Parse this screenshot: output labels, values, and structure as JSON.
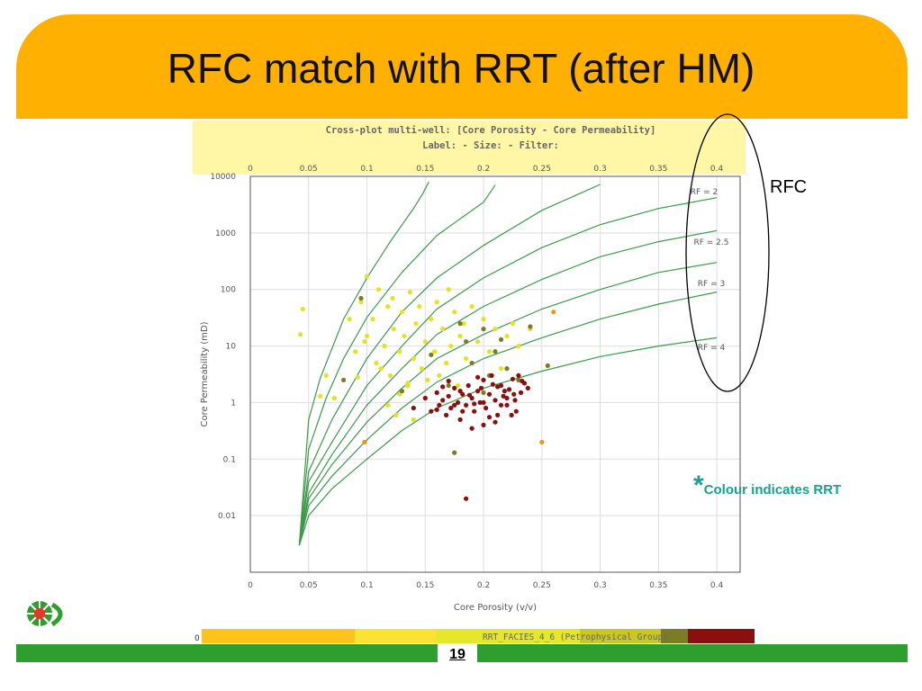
{
  "slide": {
    "title": "RFC match with RRT (after HM)",
    "annotation_label": "RFC",
    "note_star": "*",
    "note_text": "Colour indicates RRT",
    "page_number": "19"
  },
  "colors": {
    "title_band": "#FFB000",
    "footer_rule": "#2E9E2E",
    "note": "#1AA08F",
    "curve": "#3C9A4A",
    "rrt_light": "#E4E41E",
    "rrt_olive": "#7C7C24",
    "rrt_dark": "#8B0F0F",
    "rrt_orange": "#E89A12",
    "plot_header": "#FFF7A6"
  },
  "chart_data": {
    "type": "scatter",
    "title": "Cross-plot multi-well: [Core Porosity - Core Permeability]",
    "subtitle": "Label:   -  Size:   -  Filter:",
    "xlabel": "Core Porosity (v/v)",
    "ylabel": "Core Permeability (mD)",
    "xlim": [
      0,
      0.42
    ],
    "ylim": [
      0.001,
      10000
    ],
    "ylog": true,
    "grid": true,
    "x_ticks": [
      "0",
      "0.05",
      "0.1",
      "0.15",
      "0.2",
      "0.25",
      "0.3",
      "0.35",
      "0.4"
    ],
    "x_tick_values": [
      0,
      0.05,
      0.1,
      0.15,
      0.2,
      0.25,
      0.3,
      0.35,
      0.4
    ],
    "y_ticks": [
      "10000",
      "1000",
      "100",
      "10",
      "1",
      "0.1",
      "0.01"
    ],
    "y_tick_values": [
      10000,
      1000,
      100,
      10,
      1,
      0.1,
      0.01
    ],
    "legend_bar": {
      "left_label": "0",
      "label": "RRT_FACIES_4_6 (Petrophysical Group)",
      "segments": [
        "#FFC21A",
        "#FFE233",
        "#E6E62A",
        "#C8C820",
        "#7C7C24",
        "#8B0F0F"
      ]
    },
    "rf_curves": [
      {
        "label": "RF = 2",
        "points": [
          [
            0.042,
            0.003
          ],
          [
            0.05,
            0.5
          ],
          [
            0.06,
            2.7
          ],
          [
            0.08,
            30
          ],
          [
            0.1,
            160
          ],
          [
            0.12,
            700
          ],
          [
            0.14,
            2700
          ],
          [
            0.148,
            5000
          ],
          [
            0.153,
            8000
          ]
        ]
      },
      {
        "label": "",
        "points": [
          [
            0.042,
            0.003
          ],
          [
            0.05,
            0.15
          ],
          [
            0.065,
            1.2
          ],
          [
            0.08,
            6
          ],
          [
            0.1,
            32
          ],
          [
            0.13,
            200
          ],
          [
            0.16,
            900
          ],
          [
            0.2,
            3500
          ],
          [
            0.21,
            7000
          ]
        ]
      },
      {
        "label": "",
        "points": [
          [
            0.042,
            0.003
          ],
          [
            0.05,
            0.06
          ],
          [
            0.07,
            0.5
          ],
          [
            0.1,
            6
          ],
          [
            0.13,
            40
          ],
          [
            0.16,
            160
          ],
          [
            0.2,
            600
          ],
          [
            0.25,
            2500
          ],
          [
            0.3,
            7200
          ]
        ]
      },
      {
        "label": "RF = 2.5",
        "points": [
          [
            0.042,
            0.003
          ],
          [
            0.05,
            0.04
          ],
          [
            0.07,
            0.2
          ],
          [
            0.1,
            2
          ],
          [
            0.13,
            10
          ],
          [
            0.16,
            45
          ],
          [
            0.2,
            160
          ],
          [
            0.25,
            550
          ],
          [
            0.3,
            1400
          ],
          [
            0.35,
            2700
          ],
          [
            0.4,
            4200
          ]
        ]
      },
      {
        "label": "",
        "points": [
          [
            0.042,
            0.003
          ],
          [
            0.05,
            0.025
          ],
          [
            0.07,
            0.12
          ],
          [
            0.1,
            0.9
          ],
          [
            0.13,
            4
          ],
          [
            0.16,
            16
          ],
          [
            0.2,
            50
          ],
          [
            0.25,
            150
          ],
          [
            0.3,
            380
          ],
          [
            0.35,
            700
          ],
          [
            0.4,
            1100
          ]
        ]
      },
      {
        "label": "RF = 3",
        "points": [
          [
            0.042,
            0.003
          ],
          [
            0.05,
            0.02
          ],
          [
            0.07,
            0.08
          ],
          [
            0.1,
            0.45
          ],
          [
            0.13,
            1.8
          ],
          [
            0.16,
            6
          ],
          [
            0.2,
            16
          ],
          [
            0.25,
            45
          ],
          [
            0.3,
            100
          ],
          [
            0.35,
            200
          ],
          [
            0.4,
            300
          ]
        ]
      },
      {
        "label": "",
        "points": [
          [
            0.042,
            0.003
          ],
          [
            0.05,
            0.015
          ],
          [
            0.07,
            0.05
          ],
          [
            0.1,
            0.22
          ],
          [
            0.13,
            0.8
          ],
          [
            0.16,
            2.3
          ],
          [
            0.2,
            6
          ],
          [
            0.25,
            14
          ],
          [
            0.3,
            30
          ],
          [
            0.35,
            55
          ],
          [
            0.4,
            90
          ]
        ]
      },
      {
        "label": "RF = 4",
        "points": [
          [
            0.042,
            0.003
          ],
          [
            0.05,
            0.01
          ],
          [
            0.07,
            0.03
          ],
          [
            0.1,
            0.1
          ],
          [
            0.13,
            0.32
          ],
          [
            0.16,
            0.8
          ],
          [
            0.2,
            1.8
          ],
          [
            0.25,
            3.6
          ],
          [
            0.3,
            6.5
          ],
          [
            0.35,
            10
          ],
          [
            0.4,
            14
          ]
        ]
      }
    ],
    "series": [
      {
        "name": "",
        "color": "#E4E41E",
        "points": [
          [
            0.043,
            16
          ],
          [
            0.045,
            45
          ],
          [
            0.065,
            3
          ],
          [
            0.072,
            1.2
          ],
          [
            0.085,
            30
          ],
          [
            0.09,
            8
          ],
          [
            0.095,
            60
          ],
          [
            0.1,
            15
          ],
          [
            0.105,
            30
          ],
          [
            0.108,
            5
          ],
          [
            0.11,
            100
          ],
          [
            0.115,
            10
          ],
          [
            0.118,
            50
          ],
          [
            0.12,
            3
          ],
          [
            0.123,
            20
          ],
          [
            0.125,
            0.6
          ],
          [
            0.128,
            8
          ],
          [
            0.13,
            40
          ],
          [
            0.132,
            15
          ],
          [
            0.135,
            2
          ],
          [
            0.137,
            90
          ],
          [
            0.14,
            6
          ],
          [
            0.142,
            25
          ],
          [
            0.145,
            50
          ],
          [
            0.147,
            4
          ],
          [
            0.15,
            12
          ],
          [
            0.152,
            2.5
          ],
          [
            0.155,
            30
          ],
          [
            0.158,
            8
          ],
          [
            0.16,
            60
          ],
          [
            0.162,
            3
          ],
          [
            0.165,
            20
          ],
          [
            0.168,
            5
          ],
          [
            0.17,
            100
          ],
          [
            0.172,
            10
          ],
          [
            0.175,
            40
          ],
          [
            0.178,
            2
          ],
          [
            0.18,
            15
          ],
          [
            0.183,
            25
          ],
          [
            0.185,
            6
          ],
          [
            0.19,
            50
          ],
          [
            0.195,
            12
          ],
          [
            0.2,
            30
          ],
          [
            0.205,
            8
          ],
          [
            0.21,
            20
          ],
          [
            0.215,
            4
          ],
          [
            0.22,
            15
          ],
          [
            0.225,
            25
          ],
          [
            0.23,
            10
          ],
          [
            0.24,
            20
          ],
          [
            0.1,
            170
          ],
          [
            0.135,
            2.2
          ],
          [
            0.092,
            2.8
          ],
          [
            0.098,
            12
          ],
          [
            0.118,
            0.9
          ],
          [
            0.122,
            70
          ],
          [
            0.06,
            1.3
          ],
          [
            0.14,
            0.5
          ],
          [
            0.112,
            4
          ],
          [
            0.128,
            1.4
          ]
        ]
      },
      {
        "name": "",
        "color": "#7C7C24",
        "points": [
          [
            0.08,
            2.5
          ],
          [
            0.095,
            70
          ],
          [
            0.13,
            1.6
          ],
          [
            0.155,
            7
          ],
          [
            0.17,
            2
          ],
          [
            0.175,
            0.13
          ],
          [
            0.185,
            12
          ],
          [
            0.19,
            5
          ],
          [
            0.2,
            20
          ],
          [
            0.205,
            3
          ],
          [
            0.21,
            8
          ],
          [
            0.215,
            13
          ],
          [
            0.22,
            4
          ],
          [
            0.23,
            2.5
          ],
          [
            0.24,
            22
          ],
          [
            0.255,
            4.5
          ],
          [
            0.2,
            1.5
          ],
          [
            0.18,
            25
          ]
        ]
      },
      {
        "name": "",
        "color": "#E89A12",
        "points": [
          [
            0.098,
            0.2
          ],
          [
            0.25,
            0.2
          ],
          [
            0.26,
            40
          ]
        ]
      },
      {
        "name": "",
        "color": "#8B0F0F",
        "points": [
          [
            0.14,
            0.8
          ],
          [
            0.15,
            1.2
          ],
          [
            0.155,
            0.7
          ],
          [
            0.16,
            1.5
          ],
          [
            0.162,
            0.9
          ],
          [
            0.165,
            1.1
          ],
          [
            0.168,
            0.6
          ],
          [
            0.17,
            1.3
          ],
          [
            0.172,
            0.8
          ],
          [
            0.175,
            1.8
          ],
          [
            0.178,
            1
          ],
          [
            0.18,
            0.5
          ],
          [
            0.182,
            1.4
          ],
          [
            0.185,
            0.9
          ],
          [
            0.187,
            2
          ],
          [
            0.19,
            1.2
          ],
          [
            0.192,
            0.7
          ],
          [
            0.195,
            1.6
          ],
          [
            0.197,
            1
          ],
          [
            0.2,
            2.5
          ],
          [
            0.202,
            0.8
          ],
          [
            0.205,
            1.4
          ],
          [
            0.207,
            3
          ],
          [
            0.21,
            1.1
          ],
          [
            0.212,
            0.6
          ],
          [
            0.215,
            2
          ],
          [
            0.217,
            1.3
          ],
          [
            0.22,
            0.9
          ],
          [
            0.222,
            1.7
          ],
          [
            0.225,
            2.6
          ],
          [
            0.227,
            1.1
          ],
          [
            0.23,
            3
          ],
          [
            0.232,
            1.5
          ],
          [
            0.235,
            2.2
          ],
          [
            0.238,
            1.8
          ],
          [
            0.185,
            0.02
          ],
          [
            0.19,
            0.35
          ],
          [
            0.2,
            0.4
          ],
          [
            0.21,
            0.45
          ],
          [
            0.175,
            0.9
          ],
          [
            0.18,
            1.6
          ],
          [
            0.195,
            2.8
          ],
          [
            0.205,
            0.55
          ],
          [
            0.215,
            0.9
          ],
          [
            0.22,
            1.2
          ],
          [
            0.228,
            0.7
          ],
          [
            0.165,
            1.9
          ],
          [
            0.16,
            0.75
          ],
          [
            0.17,
            2.4
          ],
          [
            0.188,
            1.35
          ],
          [
            0.198,
            1.8
          ],
          [
            0.208,
            2.1
          ],
          [
            0.218,
            1.6
          ],
          [
            0.224,
            0.6
          ],
          [
            0.233,
            2.4
          ],
          [
            0.2,
            1
          ],
          [
            0.182,
            0.7
          ],
          [
            0.192,
            0.95
          ],
          [
            0.212,
            1.9
          ],
          [
            0.226,
            1.4
          ]
        ]
      }
    ]
  }
}
